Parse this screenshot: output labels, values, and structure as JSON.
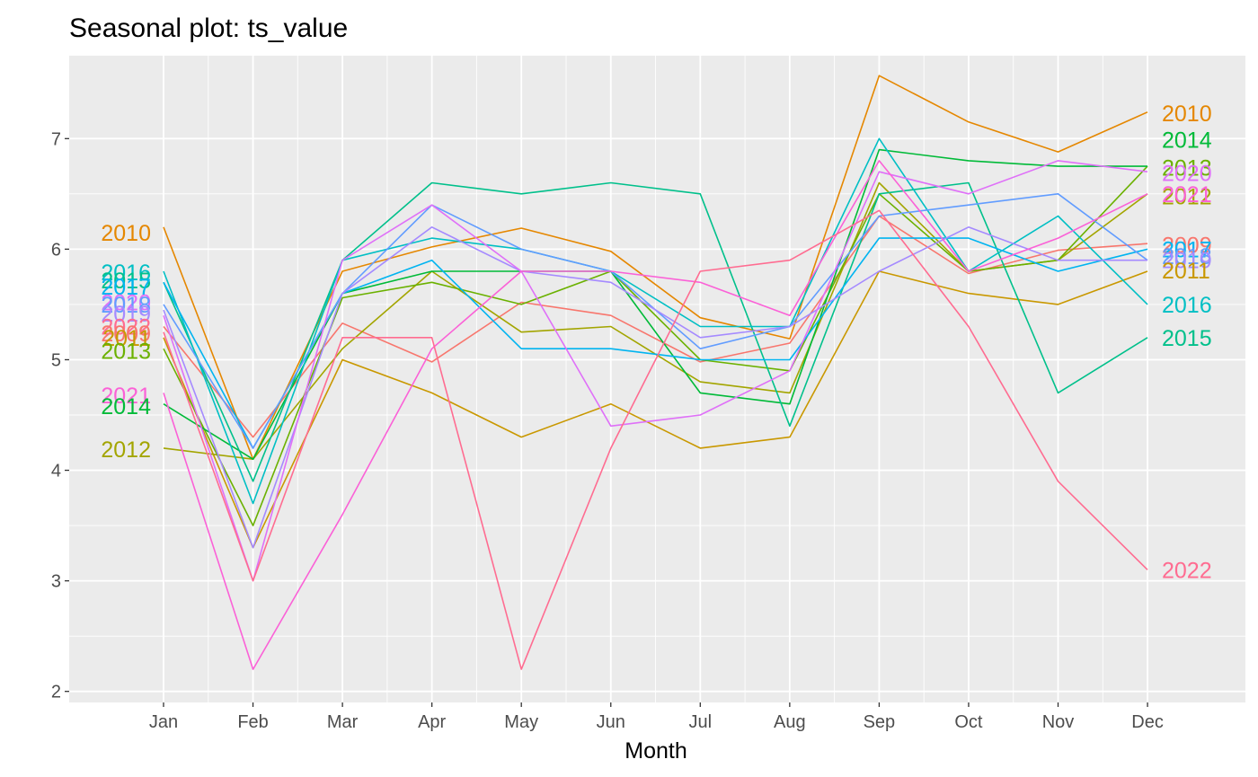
{
  "chart_data": {
    "type": "line",
    "title": "Seasonal plot: ts_value",
    "xlabel": "Month",
    "ylabel": "",
    "categories": [
      "Jan",
      "Feb",
      "Mar",
      "Apr",
      "May",
      "Jun",
      "Jul",
      "Aug",
      "Sep",
      "Oct",
      "Nov",
      "Dec"
    ],
    "ylim": [
      1.9,
      7.75
    ],
    "yticks": [
      2,
      3,
      4,
      5,
      6,
      7
    ],
    "grid": true,
    "legend": "none",
    "background": "#ebebeb",
    "series": [
      {
        "name": "2009",
        "color": "#F8766D",
        "values": [
          5.3,
          4.3,
          5.33,
          4.98,
          5.52,
          5.4,
          4.98,
          5.15,
          6.3,
          5.78,
          5.99,
          6.05
        ]
      },
      {
        "name": "2010",
        "color": "#E58700",
        "values": [
          6.2,
          4.1,
          5.8,
          6.02,
          6.19,
          5.98,
          5.38,
          5.19,
          7.57,
          7.15,
          6.88,
          7.24
        ]
      },
      {
        "name": "2011",
        "color": "#C99800",
        "values": [
          5.2,
          3.3,
          5.0,
          4.7,
          4.3,
          4.6,
          4.2,
          4.3,
          5.8,
          5.6,
          5.5,
          5.8
        ]
      },
      {
        "name": "2012",
        "color": "#A3A500",
        "values": [
          4.2,
          4.1,
          5.1,
          5.8,
          5.25,
          5.3,
          4.8,
          4.7,
          6.6,
          5.8,
          5.9,
          6.5
        ]
      },
      {
        "name": "2013",
        "color": "#6BB100",
        "values": [
          5.1,
          3.5,
          5.56,
          5.7,
          5.5,
          5.8,
          5.0,
          4.9,
          6.5,
          5.8,
          5.9,
          6.75
        ]
      },
      {
        "name": "2014",
        "color": "#00BA38",
        "values": [
          4.6,
          4.1,
          5.6,
          5.8,
          5.8,
          5.8,
          4.7,
          4.6,
          6.9,
          6.8,
          6.75,
          6.75
        ]
      },
      {
        "name": "2015",
        "color": "#00C08B",
        "values": [
          5.7,
          3.9,
          5.9,
          6.6,
          6.5,
          6.6,
          6.5,
          4.4,
          6.5,
          6.6,
          4.7,
          5.2
        ]
      },
      {
        "name": "2016",
        "color": "#00BFC4",
        "values": [
          5.8,
          3.7,
          5.9,
          6.1,
          6.0,
          5.8,
          5.3,
          5.3,
          7.0,
          5.8,
          6.3,
          5.5
        ]
      },
      {
        "name": "2017",
        "color": "#00B4F0",
        "values": [
          5.7,
          4.2,
          5.6,
          5.9,
          5.1,
          5.1,
          5.0,
          5.0,
          6.1,
          6.1,
          5.8,
          6.0
        ]
      },
      {
        "name": "2018",
        "color": "#619CFF",
        "values": [
          5.5,
          4.2,
          5.6,
          6.4,
          6.0,
          5.8,
          5.1,
          5.3,
          6.3,
          6.4,
          6.5,
          5.9
        ]
      },
      {
        "name": "2019",
        "color": "#A58AFF",
        "values": [
          5.45,
          3.3,
          5.6,
          6.2,
          5.8,
          5.7,
          5.2,
          5.3,
          5.8,
          6.2,
          5.9,
          5.9
        ]
      },
      {
        "name": "2020",
        "color": "#DF70F8",
        "values": [
          5.4,
          3.0,
          5.9,
          6.4,
          5.8,
          4.4,
          4.5,
          4.9,
          6.7,
          6.5,
          6.8,
          6.7
        ]
      },
      {
        "name": "2021",
        "color": "#FB61D7",
        "values": [
          4.7,
          2.2,
          3.6,
          5.1,
          5.8,
          5.8,
          5.7,
          5.4,
          6.8,
          5.8,
          6.1,
          6.5
        ]
      },
      {
        "name": "2022",
        "color": "#FF6C91",
        "values": [
          5.25,
          3.0,
          5.2,
          5.2,
          2.2,
          4.2,
          5.8,
          5.9,
          6.35,
          5.3,
          3.9,
          3.1
        ]
      }
    ],
    "labels_left": [
      {
        "text": "2010",
        "color": "#E58700",
        "y": 6.15
      },
      {
        "text": "2016",
        "color": "#00BFC4",
        "y": 5.79
      },
      {
        "text": "2015",
        "color": "#00C08B",
        "y": 5.72
      },
      {
        "text": "2017",
        "color": "#00B4F0",
        "y": 5.66
      },
      {
        "text": "2020",
        "color": "#DF70F8",
        "y": 5.52
      },
      {
        "text": "2018",
        "color": "#619CFF",
        "y": 5.5
      },
      {
        "text": "2019",
        "color": "#A58AFF",
        "y": 5.42
      },
      {
        "text": "2022",
        "color": "#FF6C91",
        "y": 5.3
      },
      {
        "text": "2009",
        "color": "#F8766D",
        "y": 5.24
      },
      {
        "text": "2011",
        "color": "#C99800",
        "y": 5.2
      },
      {
        "text": "2013",
        "color": "#6BB100",
        "y": 5.08
      },
      {
        "text": "2021",
        "color": "#FB61D7",
        "y": 4.68
      },
      {
        "text": "2014",
        "color": "#00BA38",
        "y": 4.58
      },
      {
        "text": "2012",
        "color": "#A3A500",
        "y": 4.19
      }
    ],
    "labels_right": [
      {
        "text": "2010",
        "color": "#E58700",
        "y": 7.23
      },
      {
        "text": "2014",
        "color": "#00BA38",
        "y": 6.99
      },
      {
        "text": "2013",
        "color": "#6BB100",
        "y": 6.74
      },
      {
        "text": "2020",
        "color": "#DF70F8",
        "y": 6.69
      },
      {
        "text": "2012",
        "color": "#A3A500",
        "y": 6.48
      },
      {
        "text": "2021",
        "color": "#FB61D7",
        "y": 6.5
      },
      {
        "text": "2009",
        "color": "#F8766D",
        "y": 6.04
      },
      {
        "text": "2017",
        "color": "#00B4F0",
        "y": 6.0
      },
      {
        "text": "2018",
        "color": "#619CFF",
        "y": 5.94
      },
      {
        "text": "2019",
        "color": "#A58AFF",
        "y": 5.9
      },
      {
        "text": "2011",
        "color": "#C99800",
        "y": 5.81
      },
      {
        "text": "2016",
        "color": "#00BFC4",
        "y": 5.5
      },
      {
        "text": "2015",
        "color": "#00C08B",
        "y": 5.2
      },
      {
        "text": "2022",
        "color": "#FF6C91",
        "y": 3.1
      }
    ]
  }
}
